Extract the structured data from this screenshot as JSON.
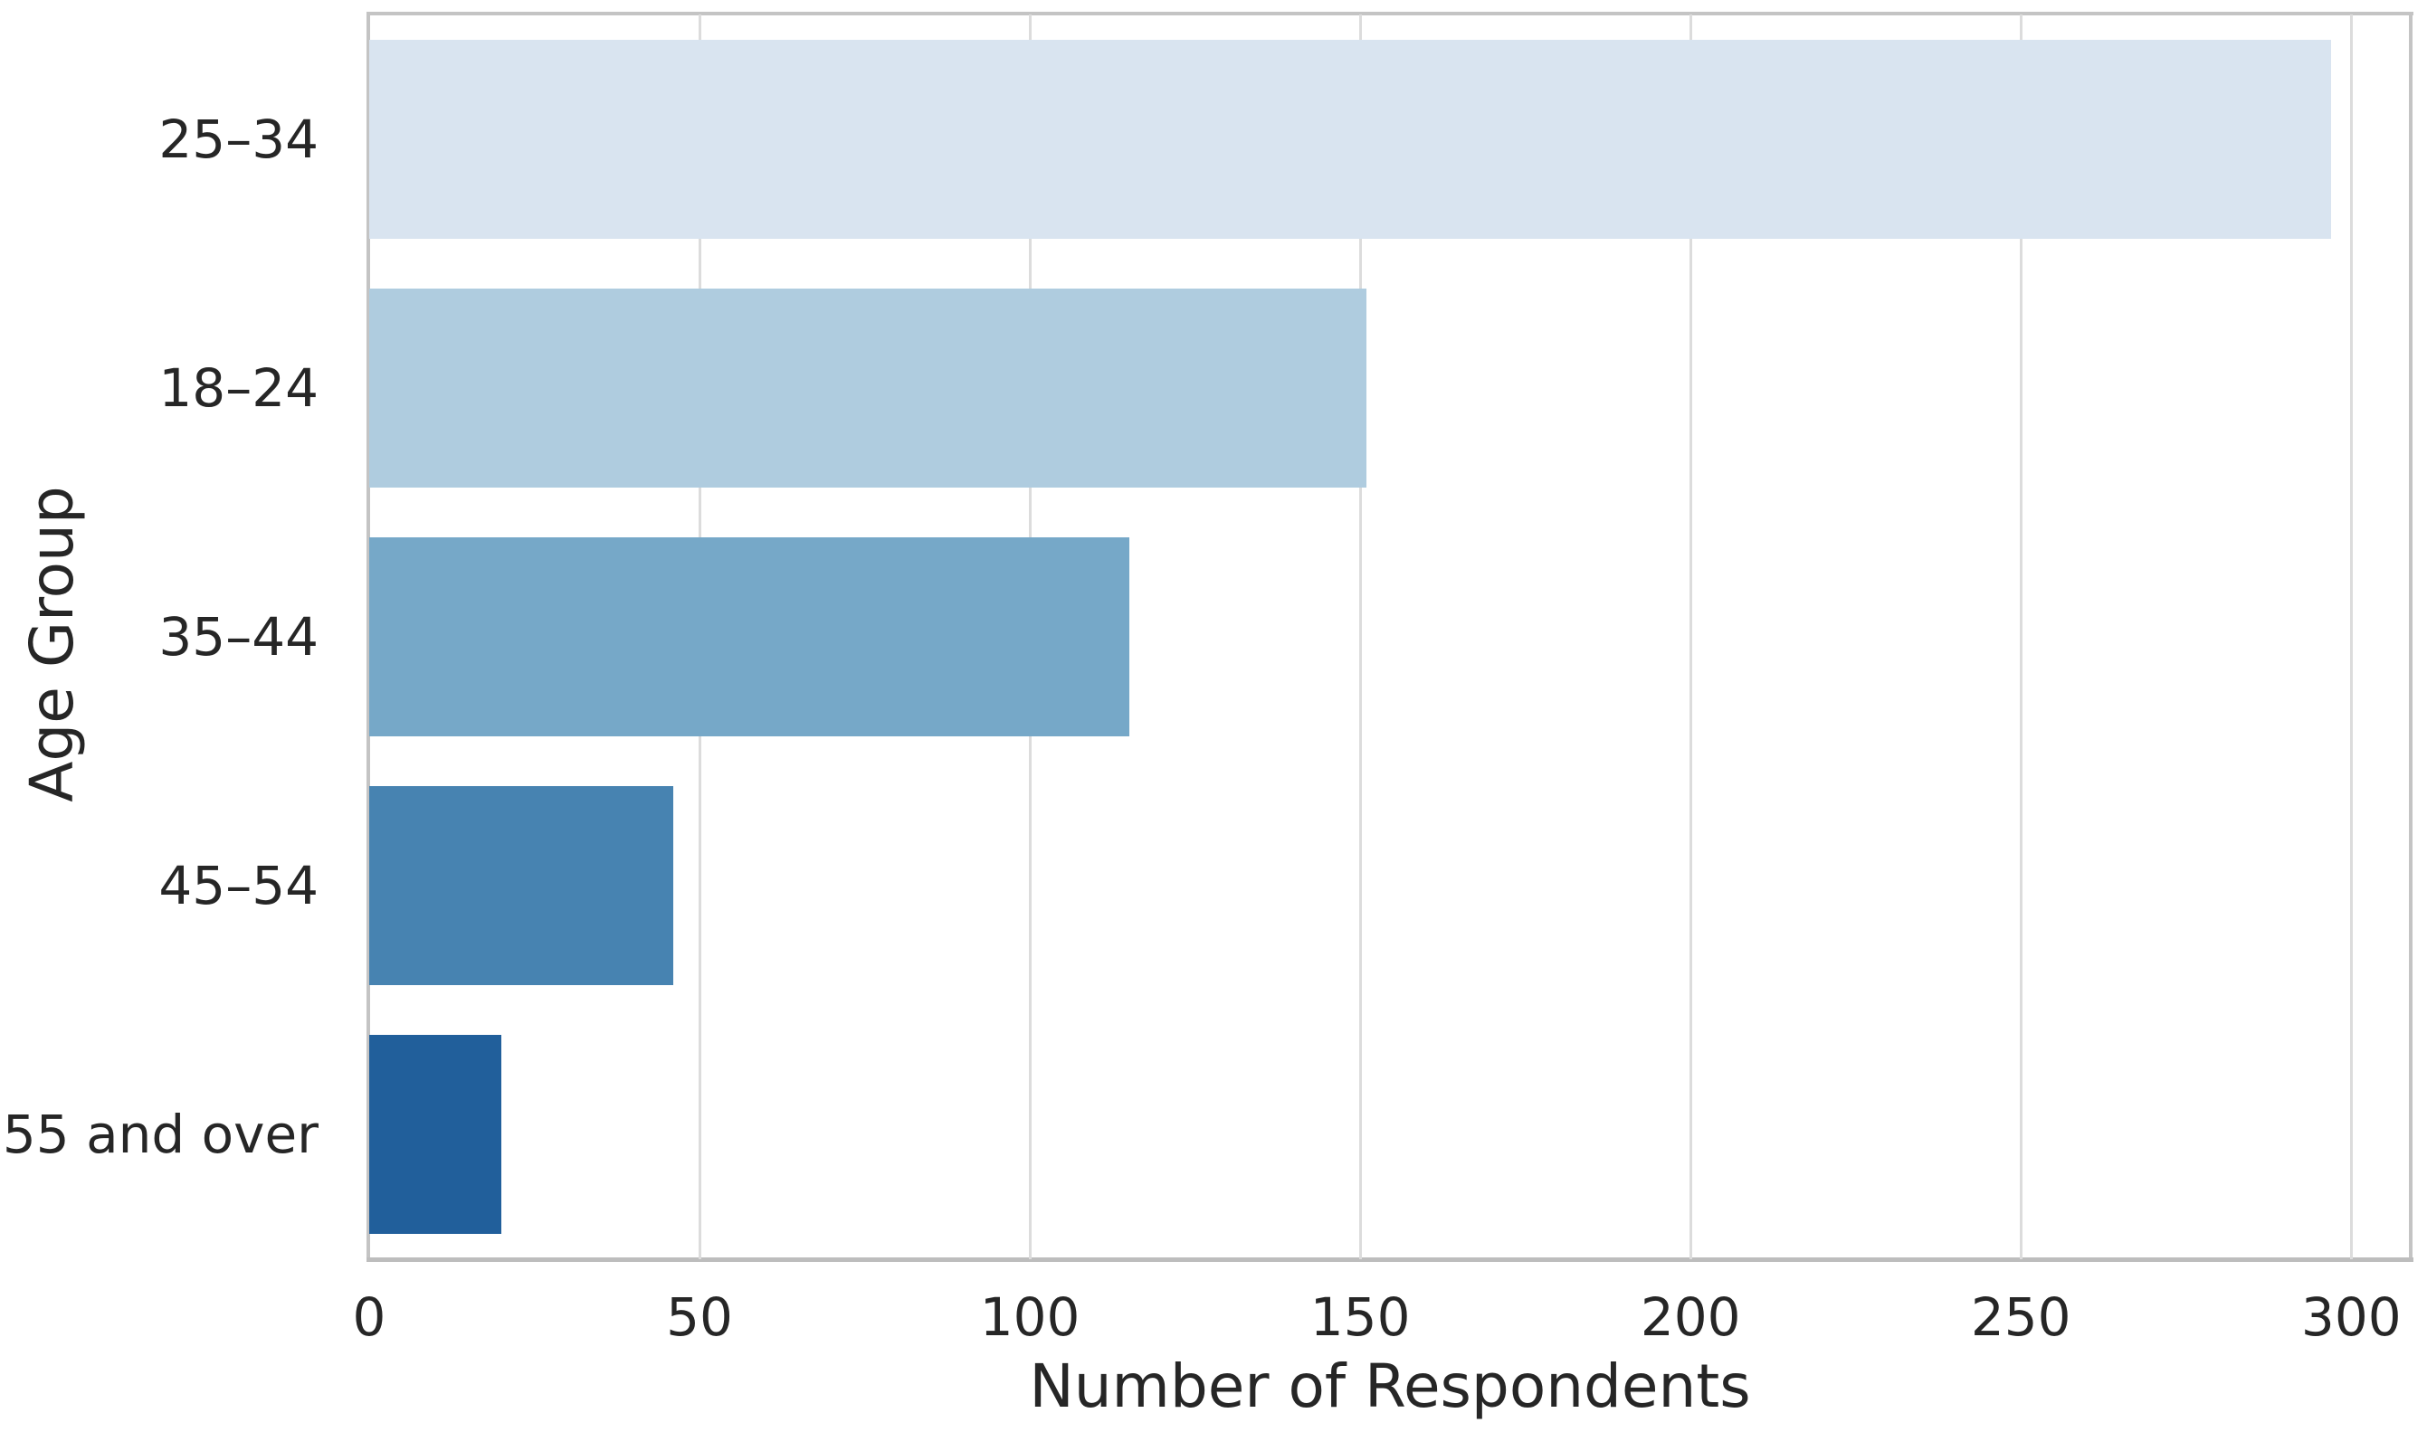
{
  "chart_data": {
    "type": "bar",
    "orientation": "horizontal",
    "title": "",
    "xlabel": "Number of Respondents",
    "ylabel": "Age Group",
    "categories": [
      "25–34",
      "18–24",
      "35–44",
      "45–54",
      "55 and over"
    ],
    "values": [
      297,
      151,
      115,
      46,
      20
    ],
    "bar_colors": [
      "#d9e4f0",
      "#afccdf",
      "#76a8c8",
      "#4783b1",
      "#215f9b"
    ],
    "x_ticks": [
      0,
      50,
      100,
      150,
      200,
      250,
      300
    ],
    "xlim": [
      0,
      309
    ],
    "bar_band_fraction": 0.8,
    "grid": "vertical",
    "gridline_color": "#dcdcdc",
    "spine_color": "#c4c4c4",
    "text_color": "#262626",
    "background_color": "#ffffff",
    "legend": "none"
  }
}
